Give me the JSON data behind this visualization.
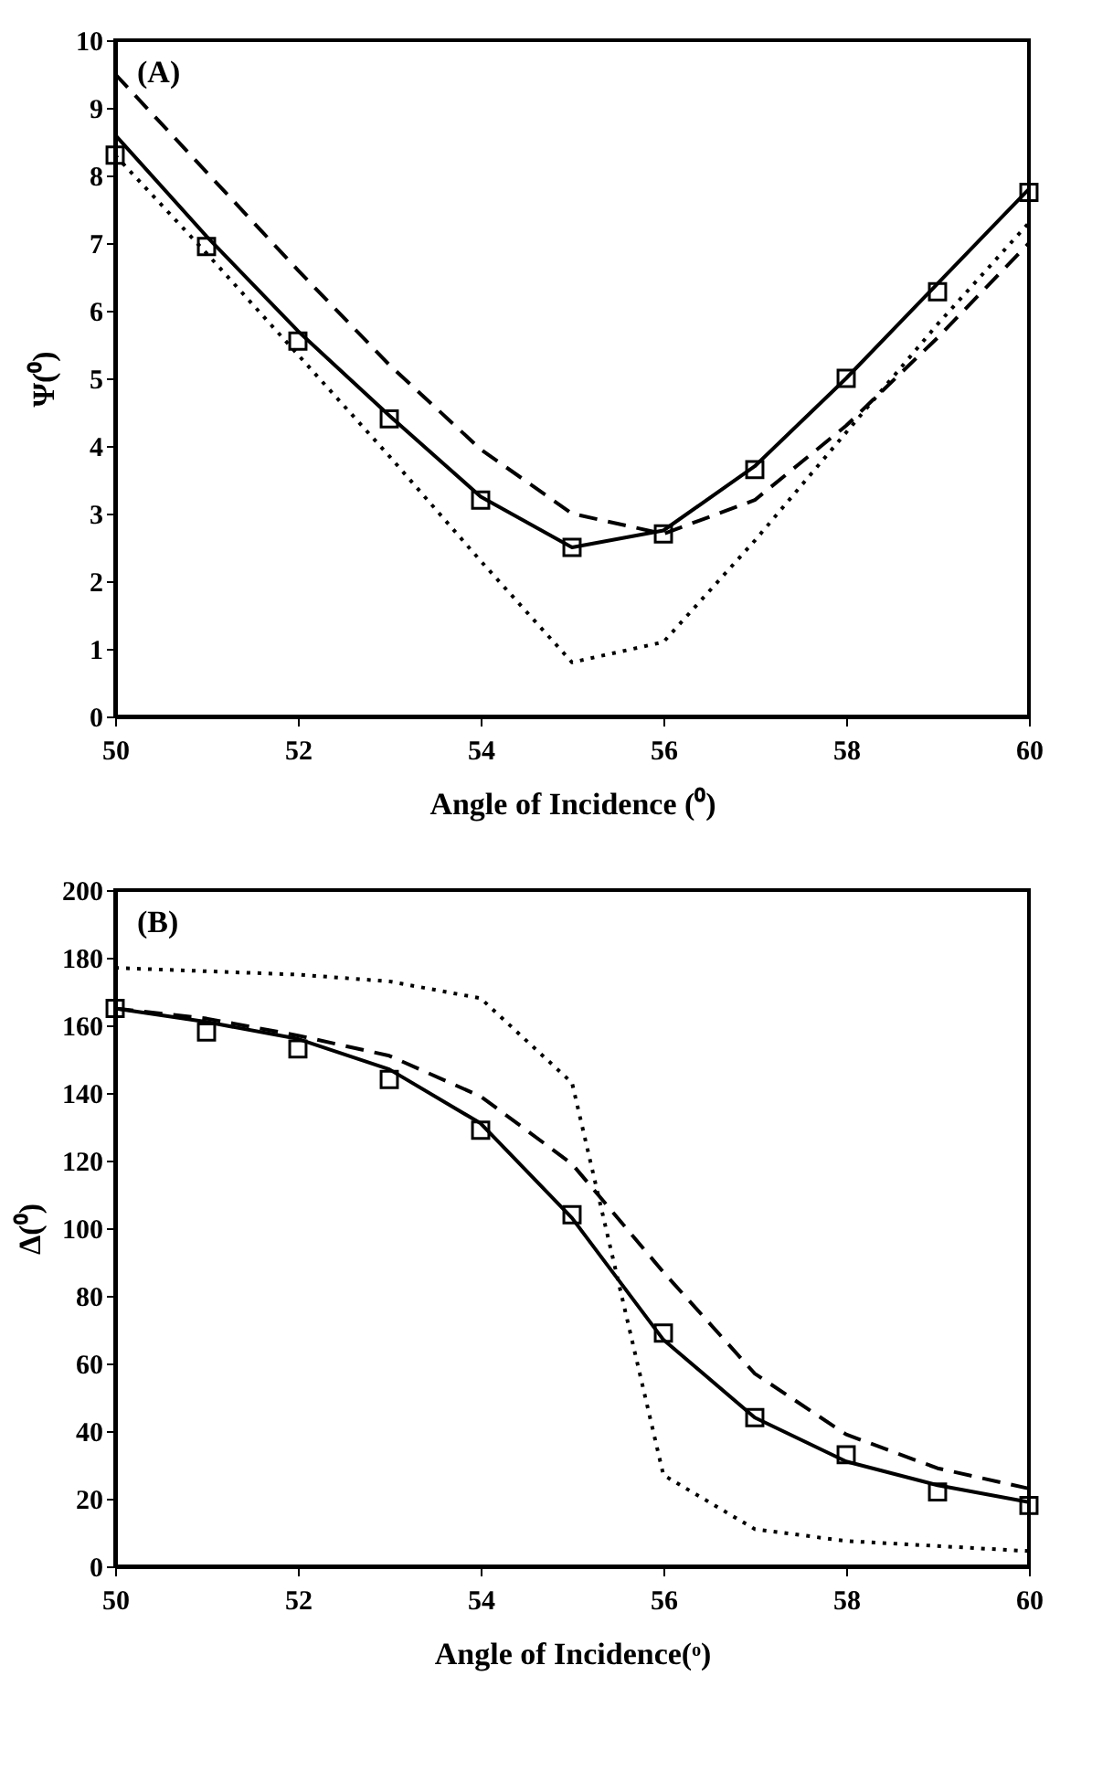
{
  "chart_data": [
    {
      "type": "line",
      "xlabel": "Angle of Incidence (⁰)",
      "ylabel": "Ψ(⁰)",
      "annotations": [
        "(A)"
      ],
      "x": [
        50,
        51,
        52,
        53,
        54,
        55,
        56,
        57,
        58,
        59,
        60
      ],
      "xlim": [
        50,
        60
      ],
      "xticks": [
        50,
        52,
        54,
        56,
        58,
        60
      ],
      "ylim": [
        0,
        10
      ],
      "yticks": [
        0,
        1,
        2,
        3,
        4,
        5,
        6,
        7,
        8,
        9,
        10
      ],
      "grid": false,
      "series": [
        {
          "type": "scatter",
          "marker": "square",
          "color": "#000000",
          "values": [
            8.3,
            6.95,
            5.55,
            4.4,
            3.2,
            2.5,
            2.7,
            3.65,
            5.0,
            6.28,
            7.75
          ]
        },
        {
          "type": "line",
          "line_style": "solid",
          "color": "#000000",
          "values": [
            8.6,
            7.1,
            5.7,
            4.45,
            3.25,
            2.5,
            2.75,
            3.7,
            5.0,
            6.4,
            7.8
          ]
        },
        {
          "type": "line",
          "line_style": "dashed",
          "color": "#000000",
          "values": [
            9.5,
            8.05,
            6.6,
            5.2,
            3.95,
            3.0,
            2.7,
            3.2,
            4.3,
            5.6,
            7.0
          ]
        },
        {
          "type": "line",
          "line_style": "dotted",
          "color": "#000000",
          "values": [
            8.3,
            6.85,
            5.35,
            3.85,
            2.3,
            0.8,
            1.1,
            2.6,
            4.2,
            5.8,
            7.3
          ]
        }
      ]
    },
    {
      "type": "line",
      "xlabel": "Angle of Incidence(ᵒ)",
      "ylabel": "Δ(⁰)",
      "annotations": [
        "(B)"
      ],
      "x": [
        50,
        51,
        52,
        53,
        54,
        55,
        56,
        57,
        58,
        59,
        60
      ],
      "xlim": [
        50,
        60
      ],
      "xticks": [
        50,
        52,
        54,
        56,
        58,
        60
      ],
      "ylim": [
        0,
        200
      ],
      "yticks": [
        0,
        20,
        40,
        60,
        80,
        100,
        120,
        140,
        160,
        180,
        200
      ],
      "grid": false,
      "series": [
        {
          "type": "scatter",
          "marker": "square",
          "color": "#000000",
          "values": [
            165,
            158,
            153,
            144,
            129,
            104,
            69,
            44,
            33,
            22,
            18
          ]
        },
        {
          "type": "line",
          "line_style": "solid",
          "color": "#000000",
          "values": [
            165,
            161,
            156,
            147,
            131,
            103,
            67,
            44,
            31,
            24,
            19
          ]
        },
        {
          "type": "line",
          "line_style": "dashed",
          "color": "#000000",
          "values": [
            165,
            162,
            157,
            151,
            139,
            119,
            87,
            57,
            39,
            29,
            23
          ]
        },
        {
          "type": "line",
          "line_style": "dotted",
          "color": "#000000",
          "values": [
            177,
            176,
            175,
            173,
            168,
            143,
            27,
            11,
            7.5,
            6,
            4.5
          ]
        }
      ]
    }
  ]
}
